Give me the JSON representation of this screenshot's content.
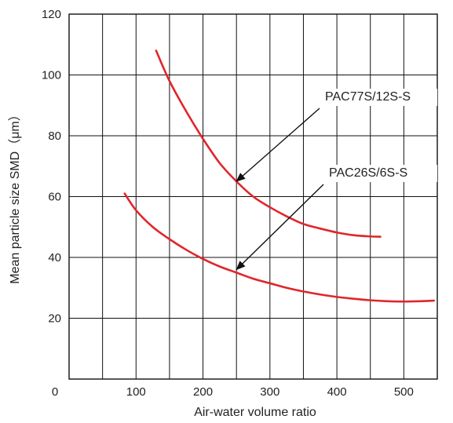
{
  "chart_data": {
    "type": "line",
    "title": "",
    "xlabel": "Air-water volume ratio",
    "ylabel": "Mean particle size SMD（μm）",
    "xlim": [
      0,
      550
    ],
    "ylim": [
      0,
      120
    ],
    "x_ticks": [
      0,
      100,
      200,
      300,
      400,
      500
    ],
    "y_ticks": [
      20,
      40,
      60,
      80,
      100,
      120
    ],
    "x_tick_labels": [
      "0",
      "100",
      "200",
      "300",
      "400",
      "500"
    ],
    "y_tick_labels": [
      "20",
      "40",
      "60",
      "80",
      "100",
      "120"
    ],
    "grid": true,
    "series": [
      {
        "name": "PAC77S/12S-S",
        "color": "#e0262b",
        "points": [
          [
            130,
            108
          ],
          [
            150,
            98
          ],
          [
            175,
            88
          ],
          [
            200,
            79
          ],
          [
            225,
            71
          ],
          [
            250,
            65
          ],
          [
            275,
            60
          ],
          [
            300,
            56.5
          ],
          [
            325,
            53.5
          ],
          [
            350,
            51
          ],
          [
            375,
            49.5
          ],
          [
            400,
            48.2
          ],
          [
            425,
            47.3
          ],
          [
            450,
            46.9
          ],
          [
            465,
            46.8
          ]
        ]
      },
      {
        "name": "PAC26S/6S-S",
        "color": "#e0262b",
        "points": [
          [
            83,
            61
          ],
          [
            100,
            55.5
          ],
          [
            125,
            50
          ],
          [
            150,
            46
          ],
          [
            175,
            42.5
          ],
          [
            200,
            39.5
          ],
          [
            225,
            37
          ],
          [
            250,
            35
          ],
          [
            275,
            33
          ],
          [
            300,
            31.5
          ],
          [
            325,
            30
          ],
          [
            350,
            28.8
          ],
          [
            375,
            27.8
          ],
          [
            400,
            27
          ],
          [
            425,
            26.4
          ],
          [
            450,
            25.9
          ],
          [
            475,
            25.6
          ],
          [
            500,
            25.5
          ],
          [
            525,
            25.6
          ],
          [
            545,
            25.8
          ]
        ]
      }
    ],
    "annotations": [
      {
        "series": 0,
        "text": "PAC77S/12S-S",
        "points_to": [
          250,
          65
        ]
      },
      {
        "series": 1,
        "text": "PAC26S/6S-S",
        "points_to": [
          250,
          36
        ]
      }
    ]
  }
}
